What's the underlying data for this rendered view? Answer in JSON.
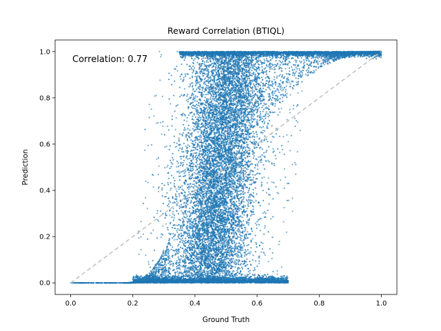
{
  "chart_data": {
    "type": "scatter",
    "title": "Reward Correlation (BTIQL)",
    "xlabel": "Ground Truth",
    "ylabel": "Prediction",
    "xlim": [
      -0.05,
      1.05
    ],
    "ylim": [
      -0.05,
      1.05
    ],
    "xticks": [
      "0.0",
      "0.2",
      "0.4",
      "0.6",
      "0.8",
      "1.0"
    ],
    "yticks": [
      "0.0",
      "0.2",
      "0.4",
      "0.6",
      "0.8",
      "1.0"
    ],
    "annotation": "Correlation: 0.77",
    "grid": false,
    "colors": {
      "points": "#1f77b4",
      "reference_line": "#bfbfbf"
    },
    "reference_line": {
      "x": [
        0,
        1
      ],
      "y": [
        0,
        1
      ],
      "style": "dashed"
    },
    "point_cloud": {
      "x_min": 0.0,
      "x_max": 1.0,
      "transition_center_bottom": 0.44,
      "transition_center_top": 0.52,
      "band_halfwidth": 0.11,
      "saturated_low_until": 0.2,
      "saturated_high_from": 0.75
    }
  }
}
